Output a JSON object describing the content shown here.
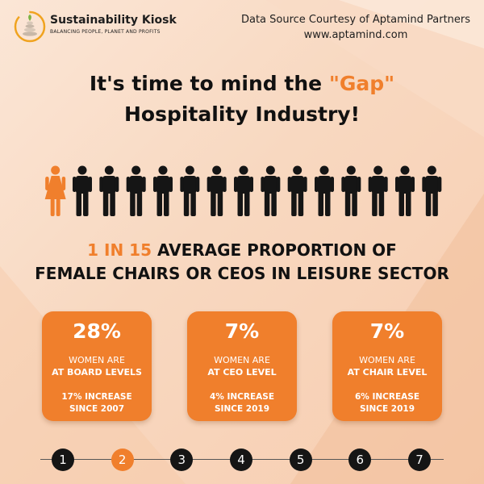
{
  "header": {
    "brand_name": "Sustainability Kiosk",
    "brand_tagline": "BALANCING PEOPLE, PLANET AND PROFITS",
    "source_line1": "Data Source Courtesy of Aptamind Partners",
    "source_line2": "www.aptamind.com"
  },
  "headline": {
    "prefix": "It's time to mind the ",
    "highlight": "\"Gap\"",
    "line2": "Hospitality Industry!"
  },
  "figures": {
    "female_count": 1,
    "male_count": 14,
    "female_color": "#f07f2c",
    "male_color": "#151515"
  },
  "subheading": {
    "highlight": "1 IN 15",
    "line1_rest": " AVERAGE PROPORTION OF",
    "line2": "FEMALE CHAIRS OR CEOS IN LEISURE SECTOR"
  },
  "cards": [
    {
      "value": "28%",
      "line1": "WOMEN ARE",
      "line2": "AT BOARD LEVELS",
      "increase": "17% INCREASE",
      "since": "SINCE 2007"
    },
    {
      "value": "7%",
      "line1": "WOMEN ARE",
      "line2": "AT CEO LEVEL",
      "increase": "4% INCREASE",
      "since": "SINCE 2019"
    },
    {
      "value": "7%",
      "line1": "WOMEN ARE",
      "line2": "AT CHAIR LEVEL",
      "increase": "6% INCREASE",
      "since": "SINCE 2019"
    }
  ],
  "pagination": {
    "pages": [
      "1",
      "2",
      "3",
      "4",
      "5",
      "6",
      "7"
    ],
    "active": "2"
  },
  "colors": {
    "accent": "#f07f2c",
    "dark": "#151515"
  }
}
